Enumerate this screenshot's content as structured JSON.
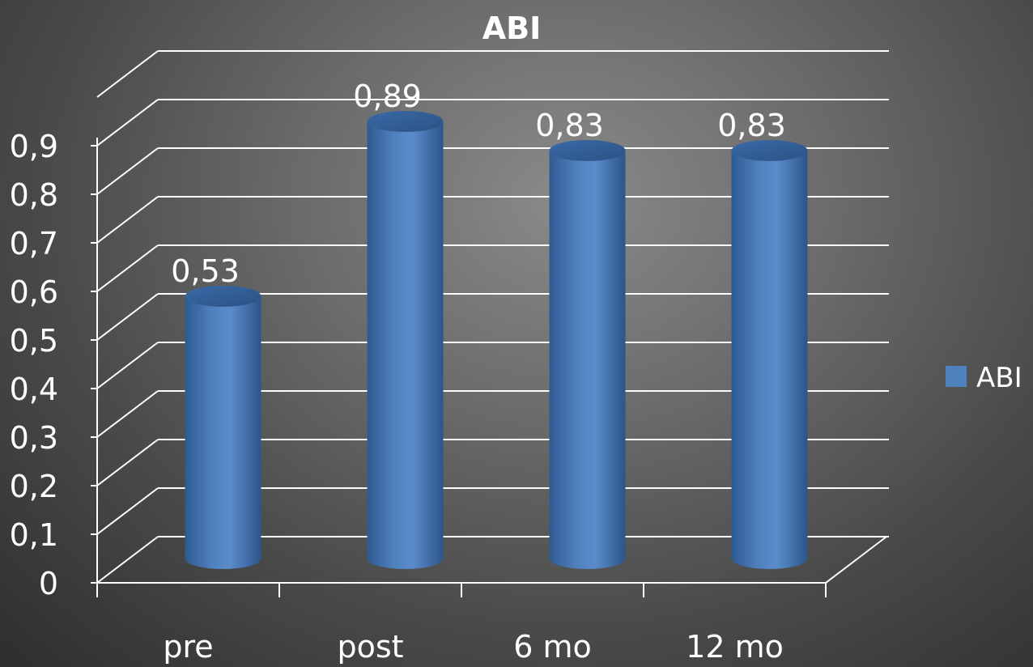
{
  "chart_data": {
    "type": "bar",
    "title": "ABI",
    "categories": [
      "pre",
      "post",
      "6 mo",
      "12 mo"
    ],
    "series": [
      {
        "name": "ABI",
        "values": [
          0.53,
          0.89,
          0.83,
          0.83
        ]
      }
    ],
    "data_labels": [
      "0,53",
      "0,89",
      "0,83",
      "0,83"
    ],
    "y_ticks": [
      "0",
      "0,1",
      "0,2",
      "0,3",
      "0,4",
      "0,5",
      "0,6",
      "0,7",
      "0,8",
      "0,9"
    ],
    "ylim": [
      0,
      1
    ],
    "grid": true,
    "legend": {
      "position": "right",
      "label": "ABI"
    },
    "colors": {
      "bar": "#4f81bd",
      "grid": "#ffffff",
      "text": "#ffffff"
    },
    "style": "3d-cylinder"
  }
}
